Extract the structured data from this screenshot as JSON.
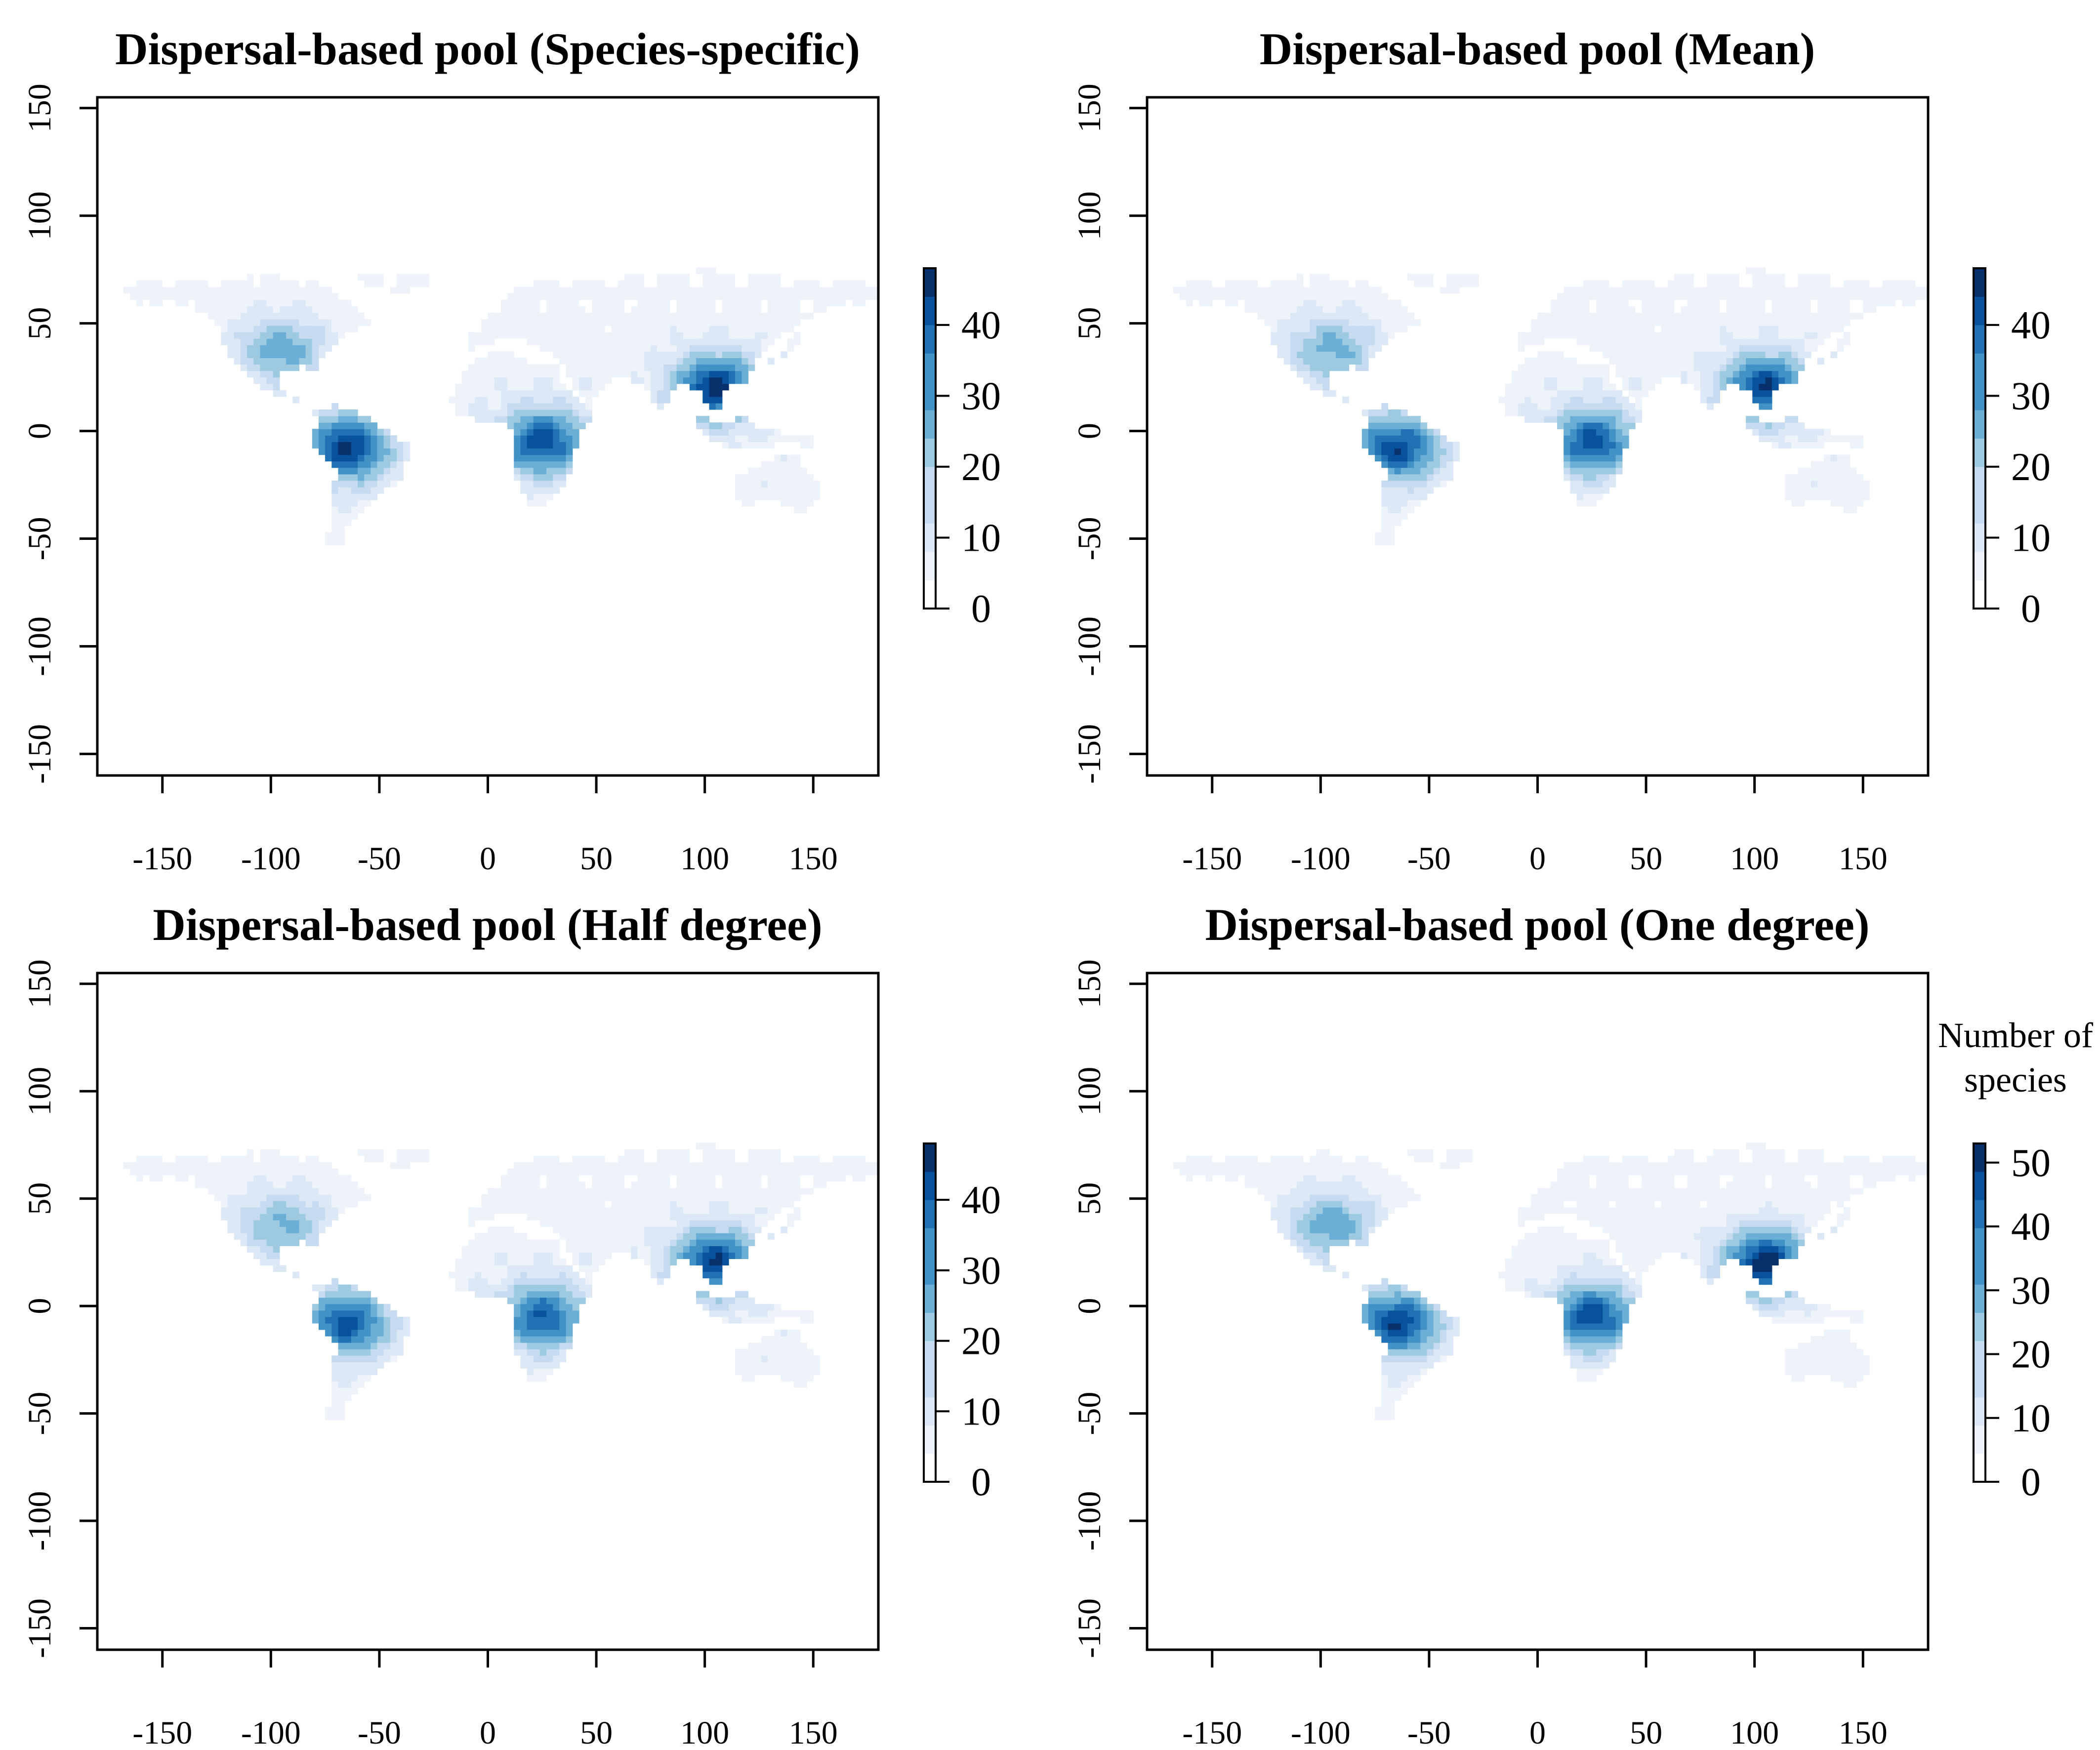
{
  "figure": {
    "colormap": [
      "#ffffff",
      "#eef3fa",
      "#dce8f5",
      "#c6dbef",
      "#9ecae1",
      "#6baed6",
      "#4292c6",
      "#2171b5",
      "#08519c",
      "#08306b"
    ],
    "legend_title_line1": "Number of",
    "legend_title_line2": "species"
  },
  "chart_data": [
    {
      "type": "heatmap",
      "title": "Dispersal-based pool (Species-specific)",
      "xlim": [
        -180,
        180
      ],
      "ylim": [
        -160,
        155
      ],
      "x_ticks": [
        -150,
        -100,
        -50,
        0,
        50,
        100,
        150
      ],
      "y_ticks": [
        -150,
        -100,
        -50,
        0,
        50,
        100,
        150
      ],
      "colorbar": {
        "max": 48,
        "ticks": [
          0,
          10,
          20,
          30,
          40
        ]
      },
      "hotspots": [
        {
          "region": "South America (Amazon)",
          "lon": -65,
          "lat": -8,
          "value": 40
        },
        {
          "region": "Central Africa",
          "lon": 25,
          "lat": -5,
          "value": 38
        },
        {
          "region": "Southeast Asia",
          "lon": 105,
          "lat": 20,
          "value": 42
        },
        {
          "region": "Eastern North America",
          "lon": -95,
          "lat": 38,
          "value": 22
        }
      ]
    },
    {
      "type": "heatmap",
      "title": "Dispersal-based pool (Mean)",
      "xlim": [
        -180,
        180
      ],
      "ylim": [
        -160,
        155
      ],
      "x_ticks": [
        -150,
        -100,
        -50,
        0,
        50,
        100,
        150
      ],
      "y_ticks": [
        -150,
        -100,
        -50,
        0,
        50,
        100,
        150
      ],
      "colorbar": {
        "max": 48,
        "ticks": [
          0,
          10,
          20,
          30,
          40
        ]
      },
      "hotspots": [
        {
          "region": "South America (Amazon)",
          "lon": -65,
          "lat": -8,
          "value": 38
        },
        {
          "region": "Central Africa",
          "lon": 25,
          "lat": -5,
          "value": 36
        },
        {
          "region": "Southeast Asia",
          "lon": 105,
          "lat": 20,
          "value": 40
        },
        {
          "region": "Eastern North America",
          "lon": -95,
          "lat": 38,
          "value": 21
        }
      ]
    },
    {
      "type": "heatmap",
      "title": "Dispersal-based pool (Half degree)",
      "xlim": [
        -180,
        180
      ],
      "ylim": [
        -160,
        155
      ],
      "x_ticks": [
        -150,
        -100,
        -50,
        0,
        50,
        100,
        150
      ],
      "y_ticks": [
        -150,
        -100,
        -50,
        0,
        50,
        100,
        150
      ],
      "colorbar": {
        "max": 48,
        "ticks": [
          0,
          10,
          20,
          30,
          40
        ]
      },
      "hotspots": [
        {
          "region": "South America (Amazon)",
          "lon": -65,
          "lat": -8,
          "value": 36
        },
        {
          "region": "Central Africa",
          "lon": 25,
          "lat": -5,
          "value": 34
        },
        {
          "region": "Southeast Asia",
          "lon": 105,
          "lat": 20,
          "value": 40
        },
        {
          "region": "Eastern North America",
          "lon": -95,
          "lat": 38,
          "value": 20
        }
      ]
    },
    {
      "type": "heatmap",
      "title": "Dispersal-based pool (One degree)",
      "xlim": [
        -180,
        180
      ],
      "ylim": [
        -160,
        155
      ],
      "x_ticks": [
        -150,
        -100,
        -50,
        0,
        50,
        100,
        150
      ],
      "y_ticks": [
        -150,
        -100,
        -50,
        0,
        50,
        100,
        150
      ],
      "colorbar": {
        "max": 53,
        "ticks": [
          0,
          10,
          20,
          30,
          40,
          50
        ]
      },
      "hotspots": [
        {
          "region": "South America (Amazon)",
          "lon": -65,
          "lat": -8,
          "value": 44
        },
        {
          "region": "Central Africa",
          "lon": 25,
          "lat": -5,
          "value": 42
        },
        {
          "region": "Southeast Asia",
          "lon": 105,
          "lat": 20,
          "value": 48
        },
        {
          "region": "Eastern North America",
          "lon": -95,
          "lat": 38,
          "value": 26
        }
      ]
    }
  ]
}
